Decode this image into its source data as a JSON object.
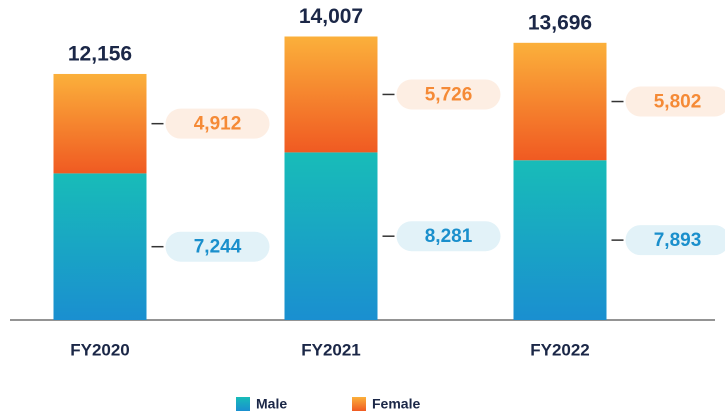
{
  "chart_data": {
    "type": "stacked_bar",
    "categories": [
      "FY2020",
      "FY2021",
      "FY2022"
    ],
    "series": [
      {
        "name": "Male",
        "color": "#17aac4",
        "gradient": [
          "#18bcb8",
          "#1a8fd0"
        ],
        "label_fill": "#e2f2f8",
        "label_color": "#1a8fcc",
        "values": [
          7244,
          8281,
          7893
        ],
        "value_labels": [
          "7,244",
          "8,281",
          "7,893"
        ]
      },
      {
        "name": "Female",
        "color": "#f7902f",
        "gradient": [
          "#fbb03b",
          "#f05a22"
        ],
        "label_fill": "#fdeee3",
        "label_color": "#f58a36",
        "values": [
          4912,
          5726,
          5802
        ],
        "value_labels": [
          "4,912",
          "5,726",
          "5,802"
        ]
      }
    ],
    "totals": [
      12156,
      14007,
      13696
    ],
    "total_labels": [
      "12,156",
      "14,007",
      "13,696"
    ],
    "ylim": [
      0,
      15000
    ]
  }
}
